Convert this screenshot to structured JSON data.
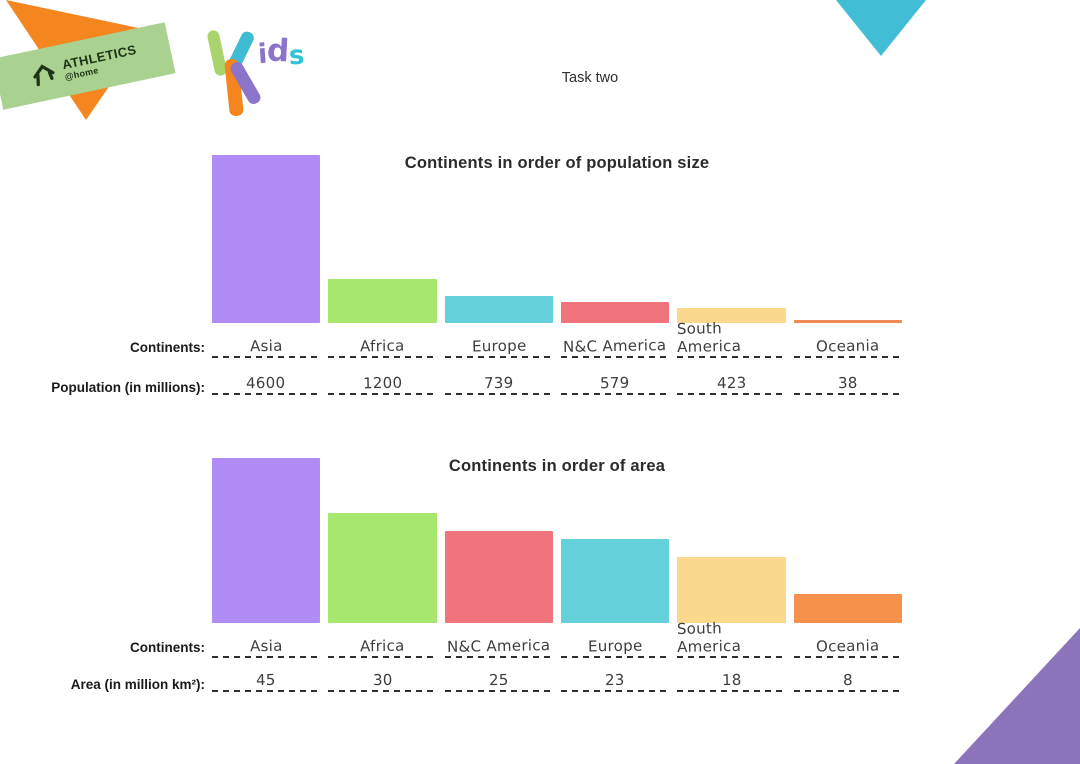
{
  "header": {
    "task_label": "Task two"
  },
  "branding": {
    "athletics_line1": "ATHLETICS",
    "athletics_line2": "@home",
    "kids_logo_text": "Kids",
    "colors": {
      "banner_green": "#a9d190",
      "logo_orange": "#f5861f",
      "corner_teal": "#41bdd5",
      "corner_purple": "#8b74ba",
      "kids_purple": "#8b74c9",
      "kids_teal": "#3fbcd4",
      "kids_green": "#a9d36d",
      "logo_text_dark": "#1e3317"
    }
  },
  "chart_data": [
    {
      "type": "bar",
      "title": "Continents in order of population size",
      "categories": [
        "Asia",
        "Africa",
        "Europe",
        "N&C America",
        "South America",
        "Oceania"
      ],
      "values": [
        4600,
        1200,
        739,
        579,
        423,
        38
      ],
      "bar_colors": [
        "#b28cf6",
        "#a7e76e",
        "#63d0dc",
        "#f0747c",
        "#fbd88c",
        "#f08a55"
      ],
      "row_labels": {
        "continents": "Continents:",
        "values": "Population (in millions):"
      },
      "ylim": [
        0,
        4600
      ],
      "xlabel": "",
      "ylabel": "",
      "grid": false,
      "legend": "none"
    },
    {
      "type": "bar",
      "title": "Continents in order of area",
      "categories": [
        "Asia",
        "Africa",
        "N&C America",
        "Europe",
        "South America",
        "Oceania"
      ],
      "values": [
        45,
        30,
        25,
        23,
        18,
        8
      ],
      "bar_colors": [
        "#b28cf6",
        "#a7e76e",
        "#f0747c",
        "#63d0dc",
        "#fbd88c",
        "#f6914b"
      ],
      "row_labels": {
        "continents": "Continents:",
        "values": "Area (in million km²):"
      },
      "ylim": [
        0,
        45
      ],
      "xlabel": "",
      "ylabel": "",
      "grid": false,
      "legend": "none"
    }
  ]
}
